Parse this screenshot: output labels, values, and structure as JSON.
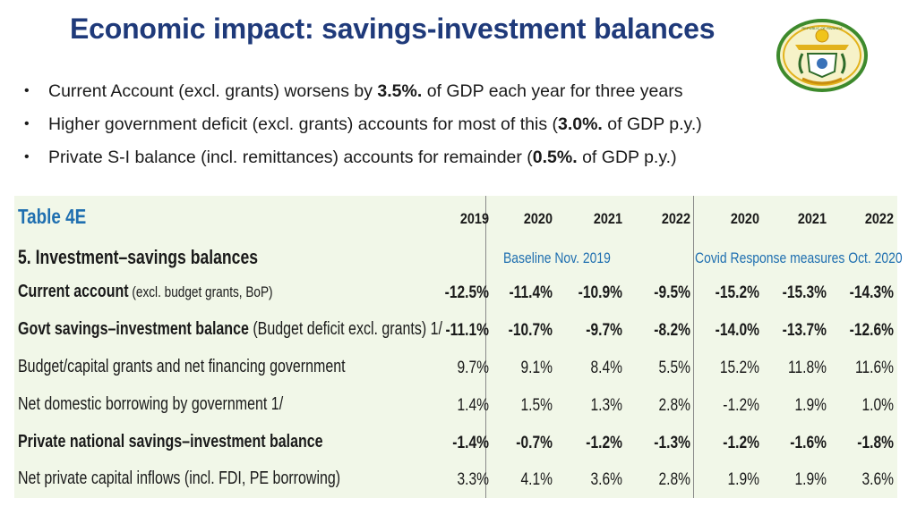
{
  "header": {
    "title": "Economic impact: savings-investment balances",
    "seal_icon": "national-coat-of-arms",
    "seal_text": "REPUBLIC OF RWANDA"
  },
  "bullets": [
    {
      "before": "Current Account (excl. grants) worsens by ",
      "bold": "3.5%.",
      "after": " of GDP each year for three years"
    },
    {
      "before": "Higher government deficit (excl. grants) accounts for most of this (",
      "bold": "3.0%.",
      "after": " of GDP p.y.)"
    },
    {
      "before": "Private S-I balance (incl. remittances) accounts for remainder (",
      "bold": "0.5%.",
      "after": " of GDP p.y.)"
    }
  ],
  "table": {
    "title": "Table 4E",
    "section": "5. Investment–savings balances",
    "years": [
      "2019",
      "2020",
      "2021",
      "2022",
      "2020",
      "2021",
      "2022"
    ],
    "baseline_label": "Baseline Nov. 2019",
    "covid_label": "Covid Response measures Oct. 2020",
    "colors": {
      "accent": "#1f6fb0",
      "panel_bg": "#f1f7e8",
      "title": "#1f3a7a"
    },
    "rows": [
      {
        "label": "Current account",
        "note": " (excl. budget grants, BoP)",
        "bold": true,
        "values": [
          "-12.5%",
          "-11.4%",
          "-10.9%",
          "-9.5%",
          "-15.2%",
          "-15.3%",
          "-14.3%"
        ]
      },
      {
        "label": "Govt savings–investment balance",
        "note": " (Budget deficit excl. grants) 1/",
        "bold": true,
        "values": [
          "-11.1%",
          "-10.7%",
          "-9.7%",
          "-8.2%",
          "-14.0%",
          "-13.7%",
          "-12.6%"
        ]
      },
      {
        "label": "Budget/capital grants and net financing government",
        "note": "",
        "bold": false,
        "values": [
          "9.7%",
          "9.1%",
          "8.4%",
          "5.5%",
          "15.2%",
          "11.8%",
          "11.6%"
        ]
      },
      {
        "label": "Net domestic borrowing by government 1/",
        "note": "",
        "bold": false,
        "values": [
          "1.4%",
          "1.5%",
          "1.3%",
          "2.8%",
          "-1.2%",
          "1.9%",
          "1.0%"
        ]
      },
      {
        "label": "Private national savings–investment balance",
        "note": "",
        "bold": true,
        "values": [
          "-1.4%",
          "-0.7%",
          "-1.2%",
          "-1.3%",
          "-1.2%",
          "-1.6%",
          "-1.8%"
        ]
      },
      {
        "label": "Net private capital inflows (incl. FDI, PE borrowing)",
        "note": "",
        "bold": false,
        "values": [
          "3.3%",
          "4.1%",
          "3.6%",
          "2.8%",
          "1.9%",
          "1.9%",
          "3.6%"
        ]
      }
    ]
  }
}
